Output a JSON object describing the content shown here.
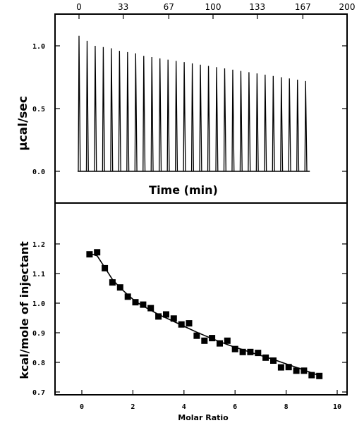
{
  "chart_data": [
    {
      "type": "line",
      "xlabel": "Time (min)",
      "ylabel": "µcal/sec",
      "xlim": [
        0,
        200
      ],
      "ylim": [
        -0.15,
        1.25
      ],
      "x_ticks": [
        "0",
        "33",
        "67",
        "100",
        "133",
        "167",
        "200"
      ],
      "y_ticks": [
        "0.0",
        "0.5",
        "1.0"
      ],
      "injection_times": [
        0,
        6.04,
        12.07,
        18.11,
        24.15,
        30.19,
        36.22,
        42.26,
        48.3,
        54.34,
        60.37,
        66.41,
        72.45,
        78.49,
        84.52,
        90.56,
        96.6,
        102.64,
        108.67,
        114.71,
        120.75,
        126.79,
        132.82,
        138.86,
        144.9,
        150.94,
        156.97,
        163.01,
        169.05
      ],
      "peak_heights": [
        1.08,
        1.04,
        1.0,
        0.99,
        0.98,
        0.96,
        0.95,
        0.94,
        0.92,
        0.91,
        0.9,
        0.89,
        0.88,
        0.87,
        0.86,
        0.85,
        0.84,
        0.83,
        0.82,
        0.81,
        0.8,
        0.79,
        0.78,
        0.77,
        0.76,
        0.75,
        0.74,
        0.73,
        0.72
      ],
      "baseline": 0.0,
      "grid": false
    },
    {
      "type": "scatter",
      "xlabel": "Molar Ratio",
      "ylabel": "kcal/mole of injectant",
      "xlim": [
        -1,
        10.7
      ],
      "ylim": [
        0.7,
        1.25
      ],
      "x_ticks": [
        "0",
        "2",
        "4",
        "6",
        "8",
        "10"
      ],
      "y_ticks": [
        "0.7",
        "0.8",
        "0.9",
        "1.0",
        "1.1",
        "1.2"
      ],
      "points": {
        "x": [
          0.3,
          0.6,
          0.9,
          1.2,
          1.5,
          1.8,
          2.1,
          2.4,
          2.7,
          3.0,
          3.3,
          3.6,
          3.9,
          4.2,
          4.5,
          4.8,
          5.1,
          5.4,
          5.7,
          6.0,
          6.3,
          6.6,
          6.9,
          7.2,
          7.5,
          7.8,
          8.1,
          8.4,
          8.7,
          9.0,
          9.3
        ],
        "y": [
          1.165,
          1.172,
          1.118,
          1.07,
          1.053,
          1.022,
          1.003,
          0.995,
          0.983,
          0.955,
          0.962,
          0.948,
          0.928,
          0.932,
          0.89,
          0.873,
          0.882,
          0.864,
          0.873,
          0.845,
          0.835,
          0.835,
          0.832,
          0.816,
          0.806,
          0.783,
          0.784,
          0.772,
          0.772,
          0.757,
          0.754
        ]
      },
      "fit_line": {
        "x": [
          0.3,
          0.6,
          0.9,
          1.2,
          1.5,
          1.8,
          2.1,
          2.4,
          2.7,
          3.0,
          3.3,
          3.6,
          3.9,
          4.2,
          4.5,
          4.8,
          5.1,
          5.4,
          5.7,
          6.0,
          6.3,
          6.6,
          6.9,
          7.2,
          7.5,
          7.8,
          8.1,
          8.4,
          8.7,
          9.0,
          9.3
        ],
        "y": [
          1.168,
          1.16,
          1.12,
          1.08,
          1.052,
          1.028,
          1.006,
          0.99,
          0.976,
          0.962,
          0.95,
          0.938,
          0.926,
          0.914,
          0.902,
          0.891,
          0.88,
          0.87,
          0.86,
          0.851,
          0.843,
          0.834,
          0.826,
          0.818,
          0.81,
          0.801,
          0.792,
          0.783,
          0.774,
          0.765,
          0.755
        ]
      },
      "marker": "square",
      "grid": false
    }
  ]
}
